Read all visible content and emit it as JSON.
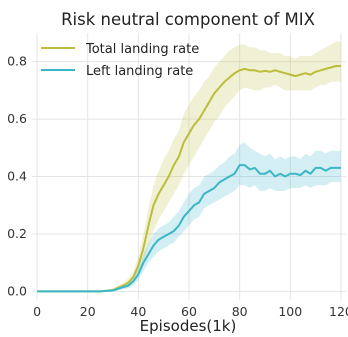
{
  "chart_data": {
    "type": "line",
    "title": "Risk neutral component of MIX",
    "xlabel": "Episodes(1k)",
    "ylabel": "",
    "xlim": [
      -2,
      122
    ],
    "ylim": [
      -0.03,
      0.9
    ],
    "grid": true,
    "legend_position": "top-left",
    "x_ticks": [
      0,
      20,
      40,
      60,
      80,
      100,
      120
    ],
    "x_tick_labels": [
      "0",
      "20",
      "40",
      "60",
      "80",
      "100",
      "120"
    ],
    "y_ticks": [
      0.0,
      0.2,
      0.4,
      0.6,
      0.8
    ],
    "y_tick_labels": [
      "0.0",
      "0.2",
      "0.4",
      "0.6",
      "0.8"
    ],
    "x": [
      0,
      10,
      20,
      25,
      30,
      34,
      36,
      38,
      40,
      42,
      44,
      46,
      48,
      50,
      52,
      54,
      56,
      58,
      60,
      62,
      64,
      66,
      68,
      70,
      72,
      74,
      76,
      78,
      80,
      82,
      84,
      86,
      88,
      90,
      92,
      94,
      96,
      98,
      100,
      102,
      104,
      106,
      108,
      110,
      112,
      114,
      116,
      118,
      120
    ],
    "series": [
      {
        "name": "Total landing rate",
        "color": "#bcbd3a",
        "values": [
          0.0,
          0.0,
          0.0,
          0.0,
          0.005,
          0.02,
          0.03,
          0.05,
          0.09,
          0.15,
          0.23,
          0.3,
          0.34,
          0.37,
          0.4,
          0.44,
          0.47,
          0.52,
          0.55,
          0.58,
          0.6,
          0.63,
          0.66,
          0.69,
          0.71,
          0.73,
          0.745,
          0.76,
          0.77,
          0.775,
          0.77,
          0.77,
          0.765,
          0.768,
          0.765,
          0.77,
          0.765,
          0.76,
          0.755,
          0.75,
          0.755,
          0.76,
          0.755,
          0.765,
          0.77,
          0.775,
          0.78,
          0.785,
          0.785
        ],
        "lower": [
          0.0,
          0.0,
          0.0,
          0.0,
          0.0,
          0.01,
          0.015,
          0.03,
          0.055,
          0.1,
          0.16,
          0.21,
          0.25,
          0.28,
          0.31,
          0.34,
          0.37,
          0.41,
          0.44,
          0.47,
          0.5,
          0.53,
          0.56,
          0.59,
          0.61,
          0.64,
          0.66,
          0.68,
          0.7,
          0.71,
          0.705,
          0.7,
          0.7,
          0.71,
          0.71,
          0.72,
          0.71,
          0.7,
          0.7,
          0.7,
          0.7,
          0.7,
          0.7,
          0.71,
          0.72,
          0.72,
          0.73,
          0.73,
          0.73
        ],
        "upper": [
          0.0,
          0.0,
          0.0,
          0.0,
          0.01,
          0.03,
          0.045,
          0.07,
          0.12,
          0.2,
          0.29,
          0.37,
          0.42,
          0.46,
          0.49,
          0.53,
          0.56,
          0.62,
          0.65,
          0.68,
          0.7,
          0.73,
          0.75,
          0.78,
          0.8,
          0.82,
          0.84,
          0.85,
          0.86,
          0.86,
          0.85,
          0.85,
          0.84,
          0.84,
          0.83,
          0.83,
          0.83,
          0.82,
          0.82,
          0.81,
          0.82,
          0.82,
          0.82,
          0.83,
          0.84,
          0.85,
          0.86,
          0.87,
          0.87
        ]
      },
      {
        "name": "Left landing rate",
        "color": "#3bb6c8",
        "values": [
          0.0,
          0.0,
          0.0,
          0.0,
          0.003,
          0.015,
          0.02,
          0.035,
          0.06,
          0.1,
          0.13,
          0.16,
          0.18,
          0.19,
          0.2,
          0.21,
          0.23,
          0.26,
          0.28,
          0.3,
          0.31,
          0.34,
          0.35,
          0.36,
          0.38,
          0.39,
          0.4,
          0.41,
          0.44,
          0.44,
          0.425,
          0.43,
          0.41,
          0.41,
          0.42,
          0.4,
          0.41,
          0.4,
          0.41,
          0.41,
          0.405,
          0.42,
          0.41,
          0.43,
          0.43,
          0.42,
          0.43,
          0.43,
          0.43
        ],
        "lower": [
          0.0,
          0.0,
          0.0,
          0.0,
          0.0,
          0.008,
          0.01,
          0.02,
          0.04,
          0.07,
          0.1,
          0.12,
          0.14,
          0.15,
          0.16,
          0.17,
          0.19,
          0.21,
          0.23,
          0.25,
          0.26,
          0.29,
          0.3,
          0.31,
          0.32,
          0.33,
          0.34,
          0.35,
          0.37,
          0.37,
          0.36,
          0.37,
          0.35,
          0.35,
          0.36,
          0.35,
          0.35,
          0.35,
          0.36,
          0.36,
          0.36,
          0.37,
          0.36,
          0.37,
          0.37,
          0.37,
          0.38,
          0.38,
          0.38
        ],
        "upper": [
          0.0,
          0.0,
          0.0,
          0.0,
          0.008,
          0.025,
          0.03,
          0.05,
          0.08,
          0.13,
          0.17,
          0.2,
          0.22,
          0.23,
          0.24,
          0.26,
          0.28,
          0.31,
          0.34,
          0.36,
          0.37,
          0.4,
          0.41,
          0.42,
          0.44,
          0.45,
          0.47,
          0.48,
          0.51,
          0.52,
          0.5,
          0.49,
          0.48,
          0.47,
          0.48,
          0.46,
          0.47,
          0.46,
          0.47,
          0.47,
          0.46,
          0.48,
          0.47,
          0.49,
          0.49,
          0.48,
          0.49,
          0.49,
          0.49
        ]
      }
    ]
  }
}
